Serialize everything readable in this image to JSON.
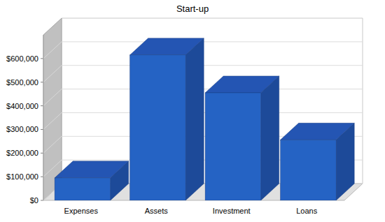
{
  "chart_data": {
    "type": "bar",
    "title": "Start-up",
    "categories": [
      "Expenses",
      "Assets",
      "Investment",
      "Loans"
    ],
    "values": [
      95000,
      615000,
      455000,
      256000
    ],
    "color": "#2563c4",
    "ylim": [
      0,
      700000
    ],
    "yticks": [
      {
        "value": 0,
        "label": "$0"
      },
      {
        "value": 100000,
        "label": "$100,000"
      },
      {
        "value": 200000,
        "label": "$200,000"
      },
      {
        "value": 300000,
        "label": "$300,000"
      },
      {
        "value": 400000,
        "label": "$400,000"
      },
      {
        "value": 500000,
        "label": "$500,000"
      },
      {
        "value": 600000,
        "label": "$600,000"
      }
    ],
    "grid": true
  }
}
